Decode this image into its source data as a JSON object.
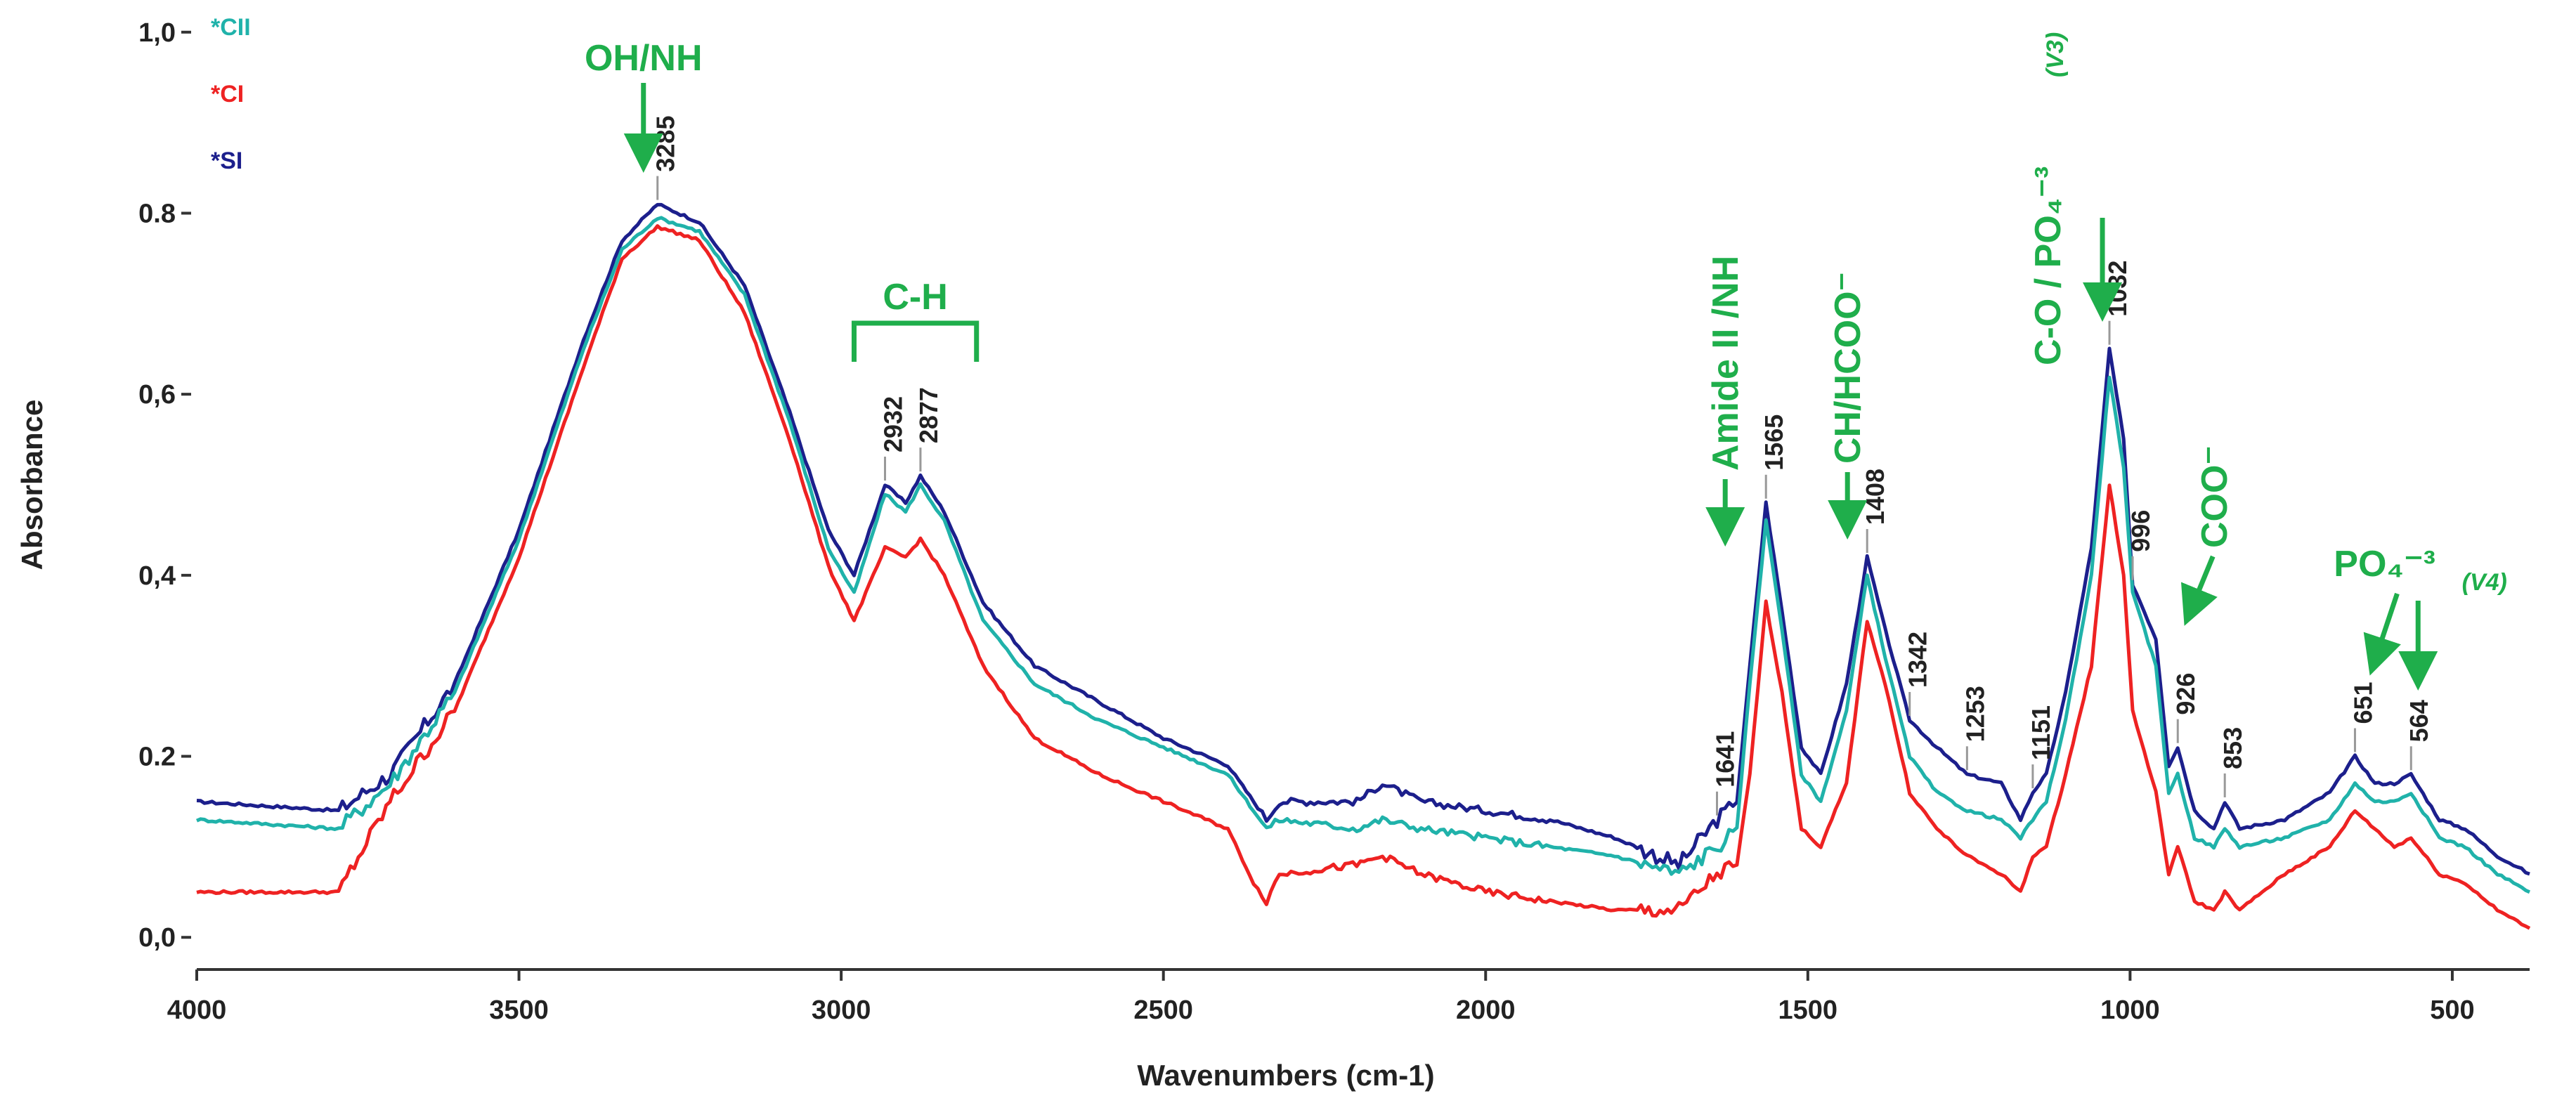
{
  "chart_data": {
    "type": "line",
    "title": "",
    "xlabel": "Wavenumbers (cm-1)",
    "ylabel": "Absorbance",
    "xlim": [
      4000,
      380
    ],
    "ylim": [
      -0.02,
      1.02
    ],
    "x_ticks": [
      {
        "value": 4000,
        "label": "4000"
      },
      {
        "value": 3500,
        "label": "3500"
      },
      {
        "value": 3000,
        "label": "3000"
      },
      {
        "value": 2500,
        "label": "2500"
      },
      {
        "value": 2000,
        "label": "2000"
      },
      {
        "value": 1500,
        "label": "1500"
      },
      {
        "value": 1000,
        "label": "1000"
      },
      {
        "value": 500,
        "label": "500"
      }
    ],
    "y_ticks": [
      {
        "value": 0.0,
        "label": "0,0"
      },
      {
        "value": 0.2,
        "label": "0.2"
      },
      {
        "value": 0.4,
        "label": "0,4"
      },
      {
        "value": 0.6,
        "label": "0,6"
      },
      {
        "value": 0.8,
        "label": "0.8"
      },
      {
        "value": 1.0,
        "label": "1,0"
      }
    ],
    "legend": [
      {
        "label": "*CII",
        "color": "#20b2aa"
      },
      {
        "label": "*CI",
        "color": "#ee2222"
      },
      {
        "label": "*SI",
        "color": "#1c1f8c"
      }
    ],
    "series": [
      {
        "name": "*SI",
        "color": "#1c1f8c",
        "points": [
          [
            4000,
            0.15
          ],
          [
            3780,
            0.14
          ],
          [
            3700,
            0.18
          ],
          [
            3600,
            0.28
          ],
          [
            3500,
            0.45
          ],
          [
            3400,
            0.66
          ],
          [
            3340,
            0.77
          ],
          [
            3285,
            0.81
          ],
          [
            3220,
            0.79
          ],
          [
            3150,
            0.72
          ],
          [
            3080,
            0.58
          ],
          [
            3020,
            0.45
          ],
          [
            2980,
            0.4
          ],
          [
            2932,
            0.5
          ],
          [
            2900,
            0.48
          ],
          [
            2877,
            0.51
          ],
          [
            2840,
            0.47
          ],
          [
            2780,
            0.37
          ],
          [
            2700,
            0.3
          ],
          [
            2600,
            0.26
          ],
          [
            2500,
            0.22
          ],
          [
            2400,
            0.19
          ],
          [
            2360,
            0.15
          ],
          [
            2340,
            0.13
          ],
          [
            2320,
            0.15
          ],
          [
            2200,
            0.15
          ],
          [
            2160,
            0.17
          ],
          [
            2100,
            0.15
          ],
          [
            2000,
            0.14
          ],
          [
            1900,
            0.13
          ],
          [
            1800,
            0.11
          ],
          [
            1700,
            0.08
          ],
          [
            1641,
            0.13
          ],
          [
            1610,
            0.15
          ],
          [
            1590,
            0.3
          ],
          [
            1565,
            0.48
          ],
          [
            1540,
            0.36
          ],
          [
            1510,
            0.21
          ],
          [
            1480,
            0.18
          ],
          [
            1440,
            0.28
          ],
          [
            1408,
            0.42
          ],
          [
            1380,
            0.34
          ],
          [
            1342,
            0.24
          ],
          [
            1300,
            0.21
          ],
          [
            1253,
            0.18
          ],
          [
            1200,
            0.17
          ],
          [
            1170,
            0.13
          ],
          [
            1151,
            0.16
          ],
          [
            1130,
            0.18
          ],
          [
            1100,
            0.27
          ],
          [
            1060,
            0.43
          ],
          [
            1032,
            0.65
          ],
          [
            1010,
            0.55
          ],
          [
            996,
            0.39
          ],
          [
            960,
            0.33
          ],
          [
            940,
            0.19
          ],
          [
            926,
            0.21
          ],
          [
            900,
            0.14
          ],
          [
            870,
            0.12
          ],
          [
            853,
            0.15
          ],
          [
            830,
            0.12
          ],
          [
            760,
            0.13
          ],
          [
            690,
            0.16
          ],
          [
            651,
            0.2
          ],
          [
            620,
            0.17
          ],
          [
            590,
            0.17
          ],
          [
            564,
            0.18
          ],
          [
            520,
            0.13
          ],
          [
            480,
            0.12
          ],
          [
            430,
            0.09
          ],
          [
            380,
            0.07
          ]
        ]
      },
      {
        "name": "*CII",
        "color": "#20b2aa",
        "points": [
          [
            4000,
            0.13
          ],
          [
            3780,
            0.12
          ],
          [
            3700,
            0.17
          ],
          [
            3600,
            0.27
          ],
          [
            3500,
            0.44
          ],
          [
            3400,
            0.65
          ],
          [
            3340,
            0.76
          ],
          [
            3285,
            0.795
          ],
          [
            3220,
            0.78
          ],
          [
            3150,
            0.71
          ],
          [
            3080,
            0.57
          ],
          [
            3020,
            0.43
          ],
          [
            2980,
            0.38
          ],
          [
            2932,
            0.49
          ],
          [
            2900,
            0.47
          ],
          [
            2877,
            0.5
          ],
          [
            2840,
            0.46
          ],
          [
            2780,
            0.35
          ],
          [
            2700,
            0.28
          ],
          [
            2600,
            0.24
          ],
          [
            2500,
            0.21
          ],
          [
            2400,
            0.18
          ],
          [
            2360,
            0.14
          ],
          [
            2340,
            0.12
          ],
          [
            2320,
            0.13
          ],
          [
            2200,
            0.12
          ],
          [
            2160,
            0.13
          ],
          [
            2100,
            0.12
          ],
          [
            2000,
            0.11
          ],
          [
            1900,
            0.1
          ],
          [
            1800,
            0.09
          ],
          [
            1700,
            0.07
          ],
          [
            1641,
            0.1
          ],
          [
            1610,
            0.12
          ],
          [
            1590,
            0.28
          ],
          [
            1565,
            0.46
          ],
          [
            1540,
            0.34
          ],
          [
            1510,
            0.18
          ],
          [
            1480,
            0.15
          ],
          [
            1440,
            0.25
          ],
          [
            1408,
            0.4
          ],
          [
            1380,
            0.31
          ],
          [
            1342,
            0.2
          ],
          [
            1300,
            0.16
          ],
          [
            1253,
            0.14
          ],
          [
            1200,
            0.13
          ],
          [
            1170,
            0.11
          ],
          [
            1151,
            0.13
          ],
          [
            1130,
            0.15
          ],
          [
            1100,
            0.24
          ],
          [
            1060,
            0.4
          ],
          [
            1032,
            0.62
          ],
          [
            1010,
            0.52
          ],
          [
            996,
            0.38
          ],
          [
            960,
            0.3
          ],
          [
            940,
            0.16
          ],
          [
            926,
            0.18
          ],
          [
            900,
            0.11
          ],
          [
            870,
            0.1
          ],
          [
            853,
            0.12
          ],
          [
            830,
            0.1
          ],
          [
            760,
            0.11
          ],
          [
            690,
            0.13
          ],
          [
            651,
            0.17
          ],
          [
            620,
            0.15
          ],
          [
            590,
            0.15
          ],
          [
            564,
            0.16
          ],
          [
            520,
            0.11
          ],
          [
            480,
            0.1
          ],
          [
            430,
            0.07
          ],
          [
            380,
            0.05
          ]
        ]
      },
      {
        "name": "*CI",
        "color": "#ee2222",
        "points": [
          [
            4000,
            0.05
          ],
          [
            3780,
            0.05
          ],
          [
            3700,
            0.15
          ],
          [
            3600,
            0.25
          ],
          [
            3500,
            0.42
          ],
          [
            3400,
            0.63
          ],
          [
            3340,
            0.75
          ],
          [
            3285,
            0.785
          ],
          [
            3220,
            0.77
          ],
          [
            3150,
            0.69
          ],
          [
            3080,
            0.55
          ],
          [
            3020,
            0.41
          ],
          [
            2980,
            0.35
          ],
          [
            2932,
            0.43
          ],
          [
            2900,
            0.42
          ],
          [
            2877,
            0.44
          ],
          [
            2840,
            0.4
          ],
          [
            2780,
            0.3
          ],
          [
            2700,
            0.22
          ],
          [
            2600,
            0.18
          ],
          [
            2500,
            0.15
          ],
          [
            2400,
            0.12
          ],
          [
            2360,
            0.06
          ],
          [
            2340,
            0.04
          ],
          [
            2320,
            0.07
          ],
          [
            2200,
            0.08
          ],
          [
            2160,
            0.09
          ],
          [
            2100,
            0.07
          ],
          [
            2000,
            0.05
          ],
          [
            1900,
            0.04
          ],
          [
            1800,
            0.03
          ],
          [
            1700,
            0.03
          ],
          [
            1641,
            0.07
          ],
          [
            1610,
            0.08
          ],
          [
            1590,
            0.18
          ],
          [
            1565,
            0.37
          ],
          [
            1540,
            0.27
          ],
          [
            1510,
            0.12
          ],
          [
            1480,
            0.1
          ],
          [
            1440,
            0.17
          ],
          [
            1408,
            0.35
          ],
          [
            1380,
            0.28
          ],
          [
            1342,
            0.16
          ],
          [
            1300,
            0.12
          ],
          [
            1253,
            0.09
          ],
          [
            1200,
            0.07
          ],
          [
            1170,
            0.05
          ],
          [
            1151,
            0.09
          ],
          [
            1130,
            0.1
          ],
          [
            1100,
            0.18
          ],
          [
            1060,
            0.3
          ],
          [
            1032,
            0.5
          ],
          [
            1010,
            0.4
          ],
          [
            996,
            0.25
          ],
          [
            960,
            0.16
          ],
          [
            940,
            0.07
          ],
          [
            926,
            0.1
          ],
          [
            900,
            0.04
          ],
          [
            870,
            0.03
          ],
          [
            853,
            0.05
          ],
          [
            830,
            0.03
          ],
          [
            760,
            0.07
          ],
          [
            690,
            0.1
          ],
          [
            651,
            0.14
          ],
          [
            620,
            0.12
          ],
          [
            590,
            0.1
          ],
          [
            564,
            0.11
          ],
          [
            520,
            0.07
          ],
          [
            480,
            0.06
          ],
          [
            430,
            0.03
          ],
          [
            380,
            0.01
          ]
        ]
      }
    ],
    "peak_labels": [
      {
        "x": 3285,
        "y": 0.81,
        "label": "3285"
      },
      {
        "x": 2932,
        "y": 0.5,
        "label": "2932"
      },
      {
        "x": 2877,
        "y": 0.51,
        "label": "2877"
      },
      {
        "x": 1641,
        "y": 0.13,
        "label": "1641"
      },
      {
        "x": 1565,
        "y": 0.48,
        "label": "1565"
      },
      {
        "x": 1408,
        "y": 0.42,
        "label": "1408"
      },
      {
        "x": 1342,
        "y": 0.24,
        "label": "1342"
      },
      {
        "x": 1253,
        "y": 0.18,
        "label": "1253"
      },
      {
        "x": 1151,
        "y": 0.16,
        "label": "1151"
      },
      {
        "x": 1032,
        "y": 0.65,
        "label": "1032"
      },
      {
        "x": 996,
        "y": 0.39,
        "label": "996"
      },
      {
        "x": 926,
        "y": 0.21,
        "label": "926"
      },
      {
        "x": 853,
        "y": 0.15,
        "label": "853"
      },
      {
        "x": 651,
        "y": 0.2,
        "label": "651"
      },
      {
        "x": 564,
        "y": 0.18,
        "label": "564"
      }
    ],
    "annotations": [
      {
        "text": "OH/NH",
        "target": 3285
      },
      {
        "text": "C-H",
        "range": [
          2932,
          2877
        ]
      },
      {
        "text": "Amide II /NH",
        "target": 1565
      },
      {
        "text": "CH/HCOO⁻",
        "target": 1408
      },
      {
        "text": "C-O / PO₄⁻³",
        "sub": "(V3)",
        "target": 1032
      },
      {
        "text": "COO⁻",
        "target": 926
      },
      {
        "text": "PO₄⁻³",
        "sub": "(V4)",
        "targets": [
          651,
          564
        ]
      }
    ],
    "colors": {
      "accent": "#1fae4b"
    }
  }
}
